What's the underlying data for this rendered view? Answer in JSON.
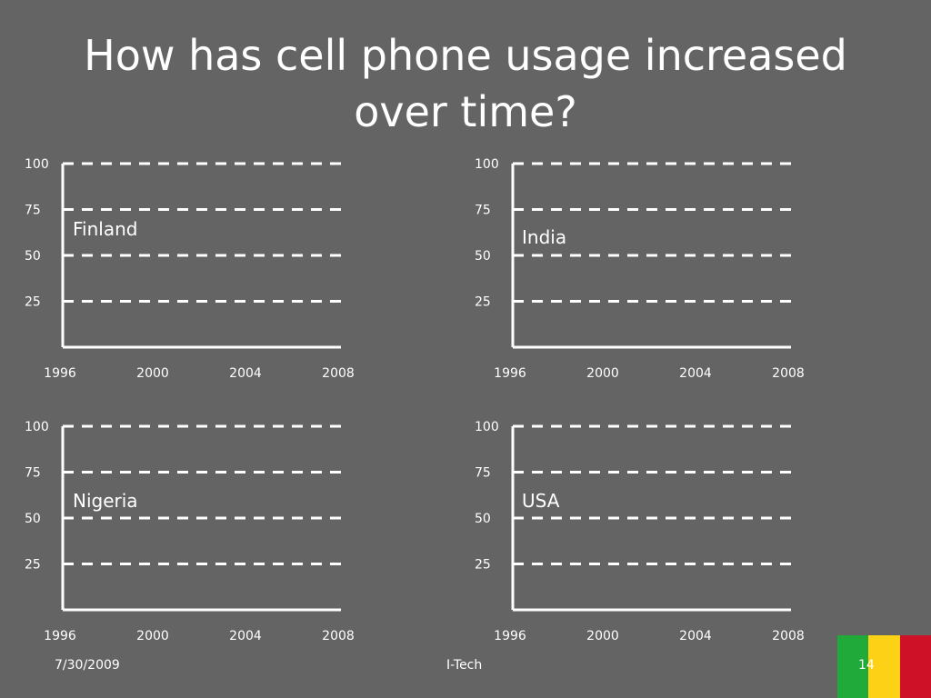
{
  "slide": {
    "title_line1": "How has cell phone usage increased",
    "title_line2": "over time?",
    "date": "7/30/2009",
    "footer_center": "I-Tech",
    "slide_number": "14",
    "background_color": "#646464",
    "flag_colors": [
      "#1faa3a",
      "#fcd116",
      "#ce1126"
    ]
  },
  "chart_data": [
    {
      "type": "line",
      "country_label": "Finland",
      "x_ticks": [
        "1996",
        "2000",
        "2004",
        "2008"
      ],
      "y_ticks": [
        "25",
        "50",
        "75",
        "100"
      ],
      "ylim": [
        0,
        100
      ],
      "grid": "dashed horizontal",
      "series": []
    },
    {
      "type": "line",
      "country_label": "India",
      "x_ticks": [
        "1996",
        "2000",
        "2004",
        "2008"
      ],
      "y_ticks": [
        "25",
        "50",
        "75",
        "100"
      ],
      "ylim": [
        0,
        100
      ],
      "grid": "dashed horizontal",
      "series": []
    },
    {
      "type": "line",
      "country_label": "Nigeria",
      "x_ticks": [
        "1996",
        "2000",
        "2004",
        "2008"
      ],
      "y_ticks": [
        "25",
        "50",
        "75",
        "100"
      ],
      "ylim": [
        0,
        100
      ],
      "grid": "dashed horizontal",
      "series": []
    },
    {
      "type": "line",
      "country_label": "USA",
      "x_ticks": [
        "1996",
        "2000",
        "2004",
        "2008"
      ],
      "y_ticks": [
        "25",
        "50",
        "75",
        "100"
      ],
      "ylim": [
        0,
        100
      ],
      "grid": "dashed horizontal",
      "series": []
    }
  ]
}
